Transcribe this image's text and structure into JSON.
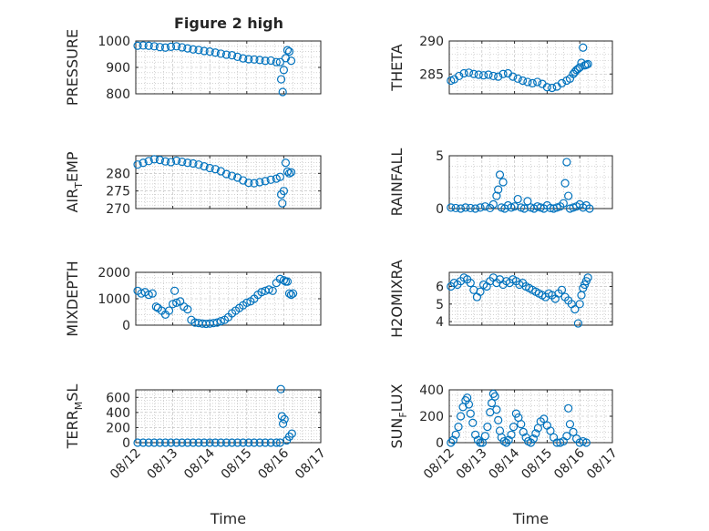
{
  "figure_title": "Figure 2 high",
  "colors": {
    "marker": "#0072BD",
    "axis": "#262626",
    "grid": "#b8b8b8"
  },
  "chart_data": [
    {
      "type": "scatter",
      "id": "pressure",
      "ylabel": "PRESSURE",
      "ylim": [
        800,
        1000
      ],
      "yticks": [
        800,
        900,
        1000
      ],
      "xlim": [
        0,
        5
      ],
      "xticklabels": [
        "08/12",
        "08/13",
        "08/14",
        "08/15",
        "08/16",
        "08/17"
      ],
      "xlabel": "",
      "grid": true,
      "x": [
        0.05,
        0.2,
        0.35,
        0.5,
        0.65,
        0.8,
        0.95,
        1.1,
        1.25,
        1.4,
        1.55,
        1.7,
        1.85,
        2.0,
        2.15,
        2.3,
        2.45,
        2.6,
        2.75,
        2.9,
        3.05,
        3.2,
        3.35,
        3.5,
        3.65,
        3.8,
        3.9,
        3.93,
        3.97,
        4.0,
        4.05,
        4.1,
        4.15,
        4.2
      ],
      "y": [
        982,
        983,
        982,
        980,
        977,
        975,
        978,
        980,
        976,
        972,
        968,
        966,
        962,
        960,
        956,
        952,
        948,
        946,
        940,
        934,
        931,
        930,
        928,
        925,
        926,
        920,
        920,
        855,
        807,
        890,
        935,
        965,
        960,
        925
      ]
    },
    {
      "type": "scatter",
      "id": "theta",
      "ylabel": "THETA",
      "ylim": [
        282,
        290
      ],
      "yticks": [
        285,
        290
      ],
      "xlim": [
        0,
        5
      ],
      "xticklabels": [
        "08/12",
        "08/13",
        "08/14",
        "08/15",
        "08/16",
        "08/17"
      ],
      "xlabel": "",
      "grid": true,
      "x": [
        0.05,
        0.15,
        0.3,
        0.45,
        0.6,
        0.75,
        0.9,
        1.05,
        1.2,
        1.35,
        1.5,
        1.65,
        1.8,
        1.95,
        2.1,
        2.25,
        2.4,
        2.55,
        2.7,
        2.85,
        3.0,
        3.15,
        3.3,
        3.45,
        3.6,
        3.7,
        3.8,
        3.85,
        3.9,
        3.95,
        4.0,
        4.05,
        4.1,
        4.15,
        4.2,
        4.25
      ],
      "y": [
        284.0,
        284.2,
        284.7,
        285.1,
        285.2,
        285.0,
        284.9,
        284.8,
        284.9,
        284.7,
        284.6,
        285.0,
        285.1,
        284.6,
        284.3,
        284.0,
        283.8,
        283.6,
        283.8,
        283.5,
        283.0,
        282.9,
        283.1,
        283.6,
        284.0,
        284.3,
        285.0,
        285.3,
        285.6,
        285.8,
        286.0,
        286.7,
        289.0,
        286.3,
        286.4,
        286.5
      ]
    },
    {
      "type": "scatter",
      "id": "air_temp",
      "ylabel": "AIR_TEMP",
      "ylim": [
        270,
        285
      ],
      "yticks": [
        270,
        275,
        280
      ],
      "xlim": [
        0,
        5
      ],
      "xticklabels": [
        "08/12",
        "08/13",
        "08/14",
        "08/15",
        "08/16",
        "08/17"
      ],
      "xlabel": "",
      "grid": true,
      "x": [
        0.05,
        0.2,
        0.35,
        0.5,
        0.65,
        0.8,
        0.95,
        1.1,
        1.25,
        1.4,
        1.55,
        1.7,
        1.85,
        2.0,
        2.15,
        2.3,
        2.45,
        2.6,
        2.75,
        2.9,
        3.05,
        3.2,
        3.35,
        3.5,
        3.65,
        3.8,
        3.9,
        3.93,
        3.96,
        4.0,
        4.05,
        4.1,
        4.15,
        4.2
      ],
      "y": [
        282.5,
        283,
        283.5,
        284,
        283.8,
        283.4,
        283.2,
        283.6,
        283.3,
        283.0,
        282.8,
        282.5,
        282.0,
        281.5,
        281.2,
        280.6,
        279.8,
        279.3,
        278.8,
        278.0,
        277.3,
        277.2,
        277.5,
        277.8,
        278.2,
        278.5,
        279.0,
        274.0,
        271.5,
        275.0,
        283.0,
        280.5,
        280.0,
        280.3
      ]
    },
    {
      "type": "scatter",
      "id": "rainfall",
      "ylabel": "RAINFALL",
      "ylim": [
        0,
        5
      ],
      "yticks": [
        0,
        5
      ],
      "xlim": [
        0,
        5
      ],
      "xticklabels": [
        "08/12",
        "08/13",
        "08/14",
        "08/15",
        "08/16",
        "08/17"
      ],
      "xlabel": "",
      "grid": true,
      "x": [
        0.05,
        0.2,
        0.35,
        0.5,
        0.65,
        0.8,
        0.95,
        1.1,
        1.25,
        1.35,
        1.45,
        1.5,
        1.55,
        1.6,
        1.65,
        1.7,
        1.8,
        1.9,
        2.0,
        2.1,
        2.2,
        2.3,
        2.4,
        2.5,
        2.6,
        2.7,
        2.8,
        2.9,
        3.0,
        3.1,
        3.2,
        3.3,
        3.4,
        3.5,
        3.55,
        3.6,
        3.65,
        3.7,
        3.8,
        3.9,
        4.0,
        4.1,
        4.2,
        4.3
      ],
      "y": [
        0.1,
        0.05,
        0.0,
        0.1,
        0.05,
        0.0,
        0.1,
        0.2,
        0.05,
        0.4,
        1.2,
        1.8,
        3.2,
        0.1,
        2.5,
        0.0,
        0.3,
        0.1,
        0.2,
        0.9,
        0.1,
        0.0,
        0.7,
        0.1,
        0.0,
        0.2,
        0.1,
        0.0,
        0.3,
        0.05,
        0.0,
        0.1,
        0.2,
        0.5,
        2.4,
        4.4,
        1.2,
        0.0,
        0.1,
        0.2,
        0.4,
        0.1,
        0.3,
        0.0
      ]
    },
    {
      "type": "scatter",
      "id": "mixdepth",
      "ylabel": "MIXDEPTH",
      "ylim": [
        0,
        2000
      ],
      "yticks": [
        0,
        1000,
        2000
      ],
      "xlim": [
        0,
        5
      ],
      "xticklabels": [
        "08/12",
        "08/13",
        "08/14",
        "08/15",
        "08/16",
        "08/17"
      ],
      "xlabel": "",
      "grid": true,
      "x": [
        0.05,
        0.15,
        0.25,
        0.35,
        0.45,
        0.55,
        0.6,
        0.7,
        0.8,
        0.9,
        1.0,
        1.05,
        1.1,
        1.2,
        1.3,
        1.4,
        1.5,
        1.6,
        1.7,
        1.8,
        1.9,
        2.0,
        2.1,
        2.2,
        2.3,
        2.4,
        2.5,
        2.6,
        2.7,
        2.8,
        2.9,
        3.0,
        3.1,
        3.2,
        3.3,
        3.4,
        3.5,
        3.6,
        3.7,
        3.8,
        3.9,
        4.0,
        4.05,
        4.1,
        4.15,
        4.2,
        4.25
      ],
      "y": [
        1300,
        1200,
        1250,
        1150,
        1200,
        700,
        650,
        550,
        400,
        550,
        800,
        1300,
        850,
        900,
        700,
        600,
        200,
        100,
        80,
        60,
        50,
        60,
        80,
        100,
        150,
        200,
        300,
        450,
        550,
        650,
        750,
        850,
        900,
        1000,
        1150,
        1250,
        1300,
        1350,
        1300,
        1600,
        1750,
        1700,
        1650,
        1650,
        1200,
        1150,
        1200
      ]
    },
    {
      "type": "scatter",
      "id": "h2omixra",
      "ylabel": "H2OMIXRA",
      "ylim": [
        3.8,
        6.8
      ],
      "yticks": [
        4,
        5,
        6
      ],
      "xlim": [
        0,
        5
      ],
      "xticklabels": [
        "08/12",
        "08/13",
        "08/14",
        "08/15",
        "08/16",
        "08/17"
      ],
      "xlabel": "",
      "grid": true,
      "x": [
        0.05,
        0.15,
        0.25,
        0.35,
        0.45,
        0.55,
        0.65,
        0.75,
        0.85,
        0.95,
        1.05,
        1.15,
        1.25,
        1.35,
        1.45,
        1.55,
        1.65,
        1.75,
        1.85,
        1.95,
        2.05,
        2.15,
        2.25,
        2.35,
        2.45,
        2.55,
        2.65,
        2.75,
        2.85,
        2.95,
        3.05,
        3.15,
        3.25,
        3.35,
        3.45,
        3.55,
        3.65,
        3.75,
        3.85,
        3.95,
        4.0,
        4.05,
        4.1,
        4.15,
        4.2,
        4.25
      ],
      "y": [
        6.0,
        6.2,
        6.1,
        6.3,
        6.5,
        6.4,
        6.2,
        5.8,
        5.4,
        5.7,
        6.1,
        6.0,
        6.3,
        6.5,
        6.2,
        6.4,
        6.1,
        6.3,
        6.2,
        6.4,
        6.3,
        6.1,
        6.2,
        6.0,
        5.9,
        5.8,
        5.7,
        5.6,
        5.5,
        5.4,
        5.6,
        5.5,
        5.3,
        5.6,
        5.8,
        5.4,
        5.2,
        5.0,
        4.7,
        3.9,
        5.0,
        5.5,
        5.9,
        6.1,
        6.3,
        6.5
      ]
    },
    {
      "type": "scatter",
      "id": "terr_msl",
      "ylabel": "TERR_MSL",
      "ylim": [
        0,
        700
      ],
      "yticks": [
        0,
        200,
        400,
        600
      ],
      "xlim": [
        0,
        5
      ],
      "xticklabels": [
        "08/12",
        "08/13",
        "08/14",
        "08/15",
        "08/16",
        "08/17"
      ],
      "xlabel": "Time",
      "grid": true,
      "x": [
        0.05,
        0.2,
        0.35,
        0.5,
        0.65,
        0.8,
        0.95,
        1.1,
        1.25,
        1.4,
        1.55,
        1.7,
        1.85,
        2.0,
        2.15,
        2.3,
        2.45,
        2.6,
        2.75,
        2.9,
        3.05,
        3.2,
        3.35,
        3.5,
        3.65,
        3.8,
        3.9,
        3.92,
        3.95,
        3.98,
        4.02,
        4.08,
        4.15,
        4.22
      ],
      "y": [
        0,
        0,
        0,
        0,
        0,
        0,
        0,
        0,
        0,
        0,
        0,
        0,
        0,
        0,
        0,
        0,
        0,
        0,
        0,
        0,
        0,
        0,
        0,
        0,
        0,
        0,
        0,
        710,
        350,
        250,
        310,
        30,
        80,
        120
      ]
    },
    {
      "type": "scatter",
      "id": "sun_flux",
      "ylabel": "SUN_FLUX",
      "ylim": [
        0,
        400
      ],
      "yticks": [
        0,
        200,
        400
      ],
      "xlim": [
        0,
        5
      ],
      "xticklabels": [
        "08/12",
        "08/13",
        "08/14",
        "08/15",
        "08/16",
        "08/17"
      ],
      "xlabel": "Time",
      "grid": true,
      "x": [
        0.05,
        0.12,
        0.2,
        0.28,
        0.35,
        0.42,
        0.5,
        0.55,
        0.6,
        0.65,
        0.72,
        0.8,
        0.88,
        0.95,
        1.02,
        1.1,
        1.17,
        1.25,
        1.3,
        1.35,
        1.4,
        1.45,
        1.5,
        1.55,
        1.6,
        1.68,
        1.75,
        1.82,
        1.9,
        1.97,
        2.05,
        2.12,
        2.2,
        2.27,
        2.35,
        2.42,
        2.5,
        2.58,
        2.65,
        2.72,
        2.8,
        2.9,
        3.0,
        3.1,
        3.2,
        3.3,
        3.4,
        3.5,
        3.6,
        3.65,
        3.7,
        3.8,
        3.9,
        4.0,
        4.1,
        4.2
      ],
      "y": [
        0,
        20,
        60,
        120,
        200,
        270,
        320,
        340,
        290,
        220,
        150,
        60,
        20,
        0,
        0,
        50,
        120,
        230,
        300,
        370,
        350,
        250,
        170,
        90,
        40,
        10,
        0,
        20,
        60,
        120,
        220,
        190,
        140,
        80,
        40,
        10,
        0,
        30,
        70,
        110,
        160,
        180,
        130,
        90,
        40,
        0,
        0,
        10,
        50,
        260,
        140,
        80,
        30,
        0,
        10,
        0
      ]
    }
  ]
}
